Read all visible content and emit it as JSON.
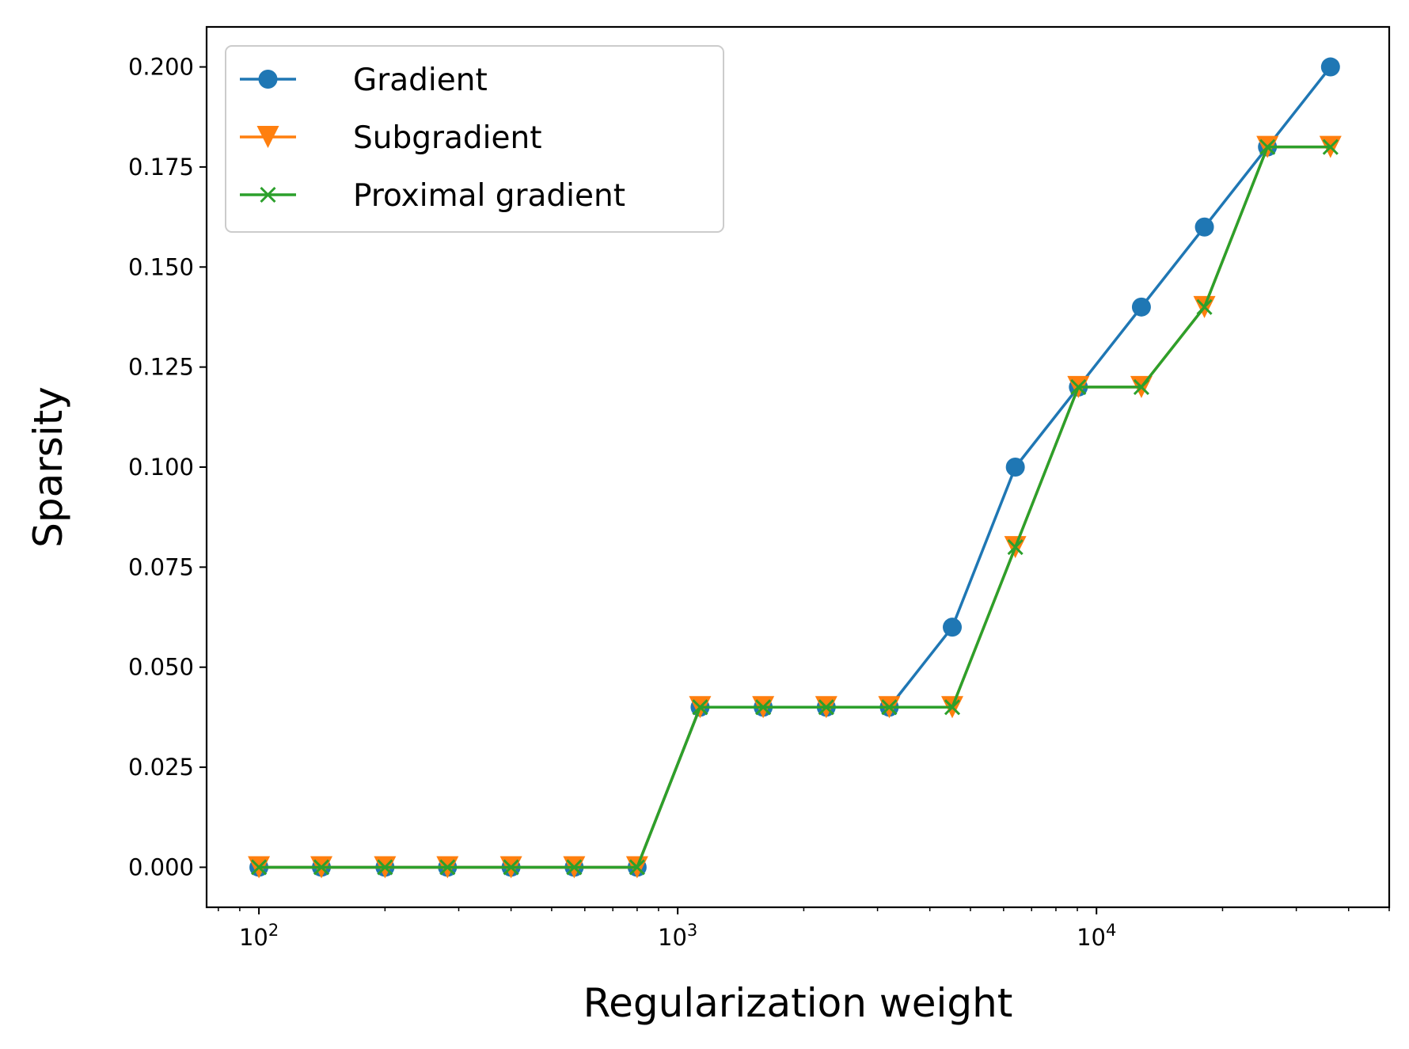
{
  "chart_data": {
    "type": "line",
    "xscale": "log",
    "xlabel": "Regularization weight",
    "ylabel": "Sparsity",
    "xlim": [
      75,
      50000
    ],
    "ylim": [
      -0.01,
      0.21
    ],
    "grid": false,
    "legend_position": "top-left",
    "x_ticks": [
      {
        "value": 100,
        "base": "10",
        "exp": "2"
      },
      {
        "value": 1000,
        "base": "10",
        "exp": "3"
      },
      {
        "value": 10000,
        "base": "10",
        "exp": "4"
      }
    ],
    "y_ticks": [
      "0.000",
      "0.025",
      "0.050",
      "0.075",
      "0.100",
      "0.125",
      "0.150",
      "0.175",
      "0.200"
    ],
    "x": [
      100,
      141,
      200,
      282,
      400,
      566,
      800,
      1131,
      1600,
      2263,
      3200,
      4525,
      6400,
      9051,
      12800,
      18102,
      25600,
      36204
    ],
    "series": [
      {
        "name": "Gradient",
        "color": "#1f77b4",
        "marker": "circle",
        "values": [
          0,
          0,
          0,
          0,
          0,
          0,
          0,
          0.04,
          0.04,
          0.04,
          0.04,
          0.06,
          0.1,
          0.12,
          0.14,
          0.16,
          0.18,
          0.2
        ]
      },
      {
        "name": "Subgradient",
        "color": "#ff7f0e",
        "marker": "triangle-down",
        "values": [
          0,
          0,
          0,
          0,
          0,
          0,
          0,
          0.04,
          0.04,
          0.04,
          0.04,
          0.04,
          0.08,
          0.12,
          0.12,
          0.14,
          0.18,
          0.18
        ]
      },
      {
        "name": "Proximal gradient",
        "color": "#2ca02c",
        "marker": "x",
        "values": [
          0,
          0,
          0,
          0,
          0,
          0,
          0,
          0.04,
          0.04,
          0.04,
          0.04,
          0.04,
          0.08,
          0.12,
          0.12,
          0.14,
          0.18,
          0.18
        ]
      }
    ]
  }
}
